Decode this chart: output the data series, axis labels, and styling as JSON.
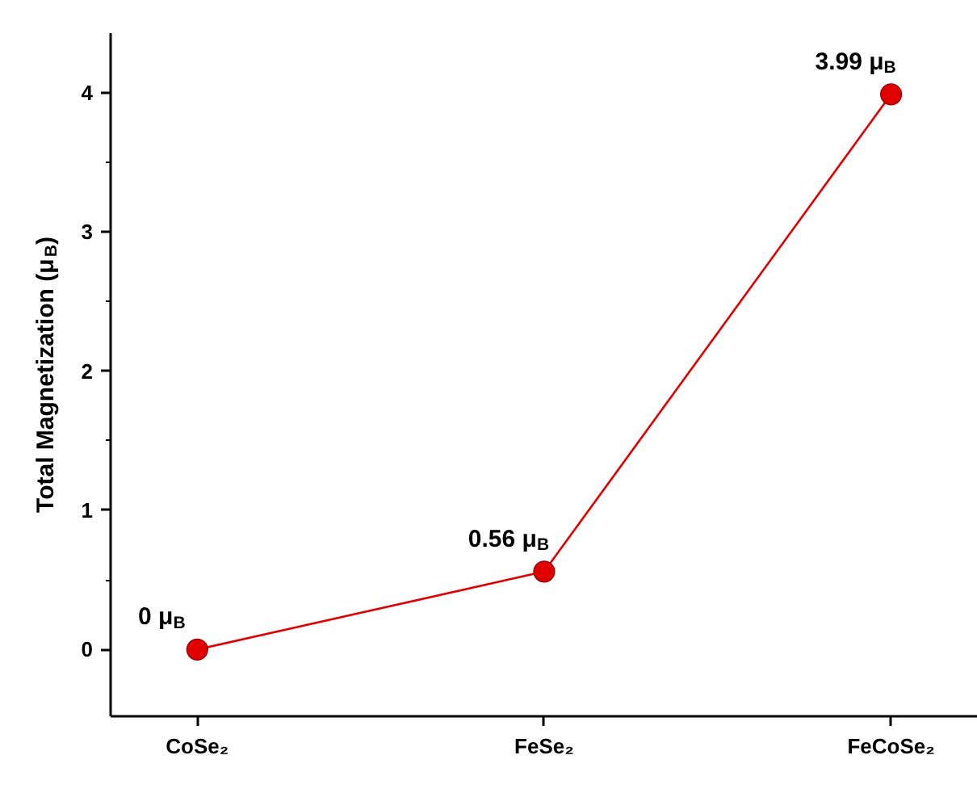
{
  "chart_data": {
    "type": "line",
    "categories": [
      "CoSe₂",
      "FeSe₂",
      "FeCoSe₂"
    ],
    "values": [
      0,
      0.56,
      3.99
    ],
    "color": "#e00000",
    "marker": "circle",
    "line_style": "solid",
    "ylabel": "Total Magnetization (μ$_{B}$)",
    "ylim": [
      -0.48,
      4.43
    ],
    "yticks": [
      0,
      1,
      2,
      3,
      4
    ],
    "grid": false,
    "value_labels": [
      "0 μ$_{B}$",
      "0.56 μ$_{B}$",
      "3.99 μ$_{B}$"
    ]
  }
}
